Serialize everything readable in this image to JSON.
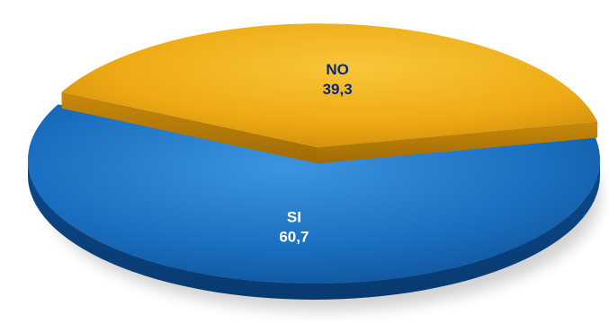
{
  "chart_data": {
    "type": "pie",
    "title": "",
    "slices": [
      {
        "label": "SI",
        "value_text": "60,7",
        "value": 60.7,
        "color": "#1a73c6"
      },
      {
        "label": "NO",
        "value_text": "39,3",
        "value": 39.3,
        "color": "#f2b01a"
      }
    ],
    "label_color": "#ffffff",
    "label_color_alt": "#0a2a6e",
    "legend": "none",
    "style": "3d-exploded"
  }
}
